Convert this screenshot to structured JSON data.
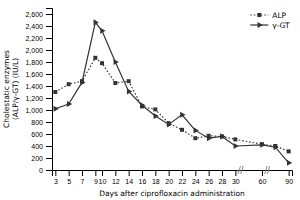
{
  "chart_data": {
    "type": "line",
    "xlabel": "Days after ciprofloxacin administration",
    "ylabel": "Cholestatic enzymes\n(ALP/γ-GT) (IU/L)",
    "x": [
      3,
      5,
      7,
      9,
      10,
      12,
      14,
      16,
      18,
      20,
      22,
      24,
      26,
      28,
      30,
      60,
      75,
      90
    ],
    "series": [
      {
        "name": "ALP",
        "color": "#333333",
        "line_style": "dotted",
        "marker": "square",
        "values": [
          1300,
          1430,
          1480,
          1870,
          1780,
          1450,
          1480,
          1060,
          1010,
          780,
          670,
          530,
          570,
          560,
          510,
          430,
          400,
          310
        ]
      },
      {
        "name": "γ-GT",
        "color": "#333333",
        "line_style": "solid",
        "marker": "triangle-right",
        "values": [
          1020,
          1100,
          1460,
          2460,
          2320,
          1800,
          1310,
          1080,
          900,
          760,
          920,
          660,
          530,
          560,
          400,
          420,
          380,
          120
        ]
      }
    ],
    "xlim": [
      2.5,
      93.75
    ],
    "xticks": [
      3,
      5,
      7,
      9,
      10,
      12,
      14,
      16,
      18,
      20,
      22,
      24,
      26,
      28,
      30,
      60,
      90
    ],
    "ylim": [
      0,
      2700
    ],
    "yticks": [
      0,
      200,
      400,
      600,
      800,
      {
        "value": 1000,
        "label": "1,000"
      },
      {
        "value": 1200,
        "label": "1,200"
      },
      {
        "value": 1400,
        "label": "1,400"
      },
      {
        "value": 1600,
        "label": "1,600"
      },
      {
        "value": 1800,
        "label": "1,800"
      },
      {
        "value": 2000,
        "label": "2,000"
      },
      {
        "value": 2200,
        "label": "2,200"
      },
      {
        "value": 2400,
        "label": "2,400"
      },
      {
        "value": 2600,
        "label": "2,600"
      }
    ],
    "grid": false,
    "legend": "upper right"
  }
}
